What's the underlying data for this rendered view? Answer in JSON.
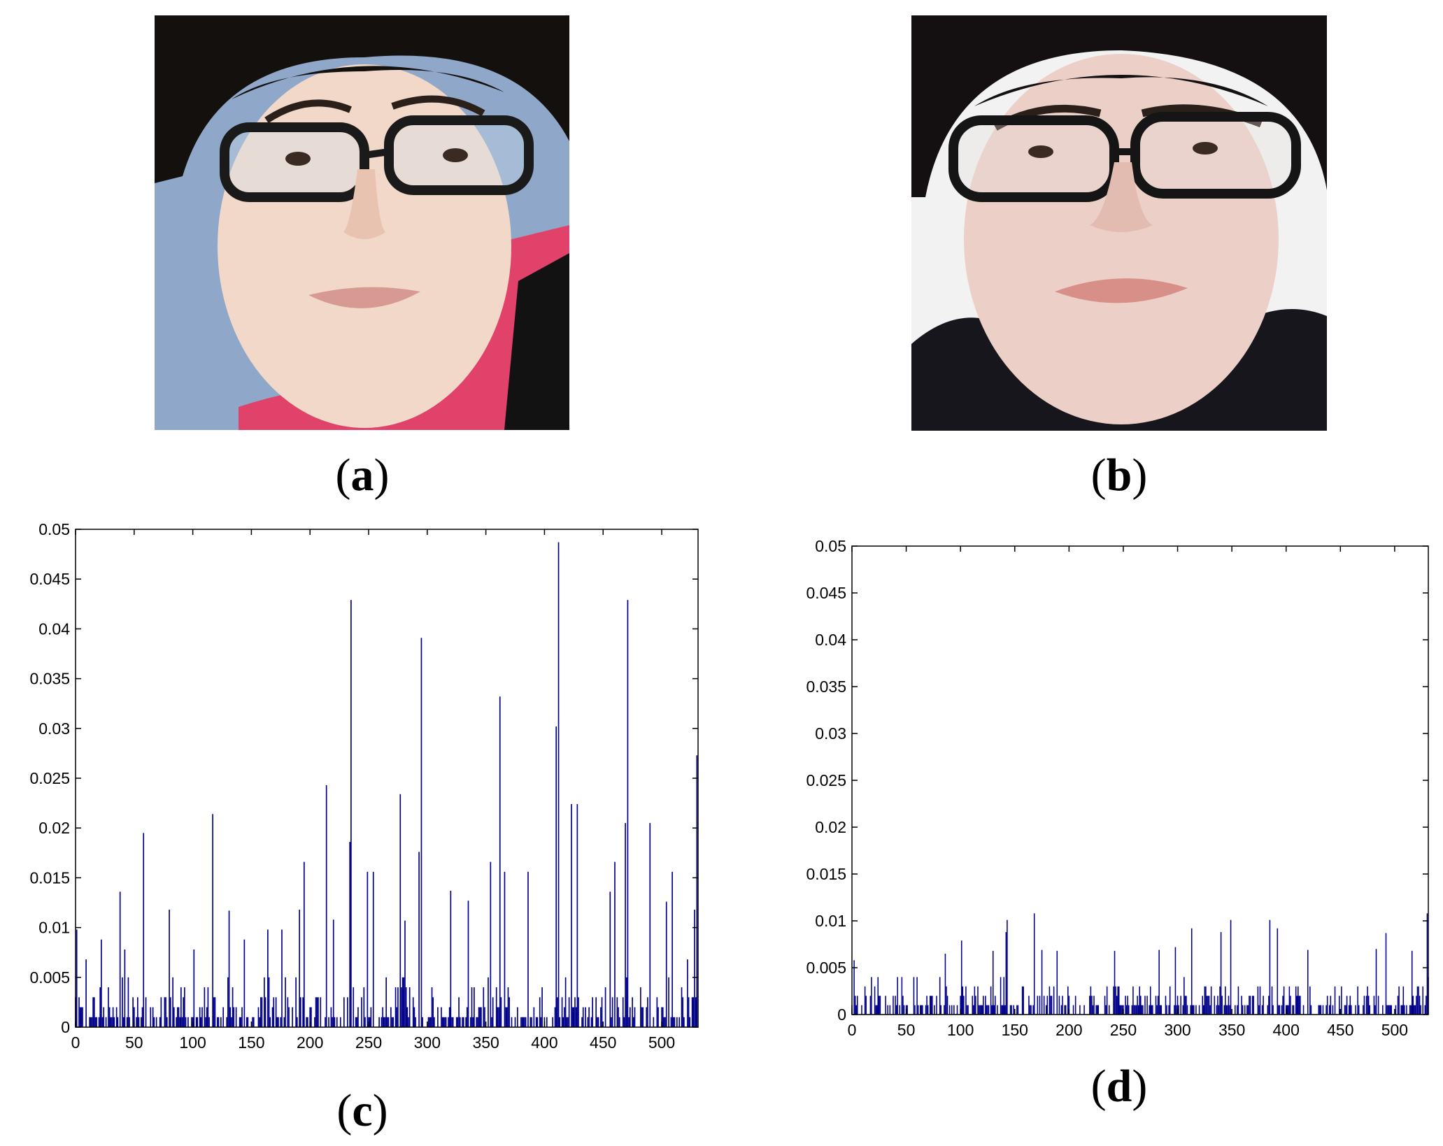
{
  "figure": {
    "captions": [
      {
        "open": "(",
        "letter": "a",
        "close": ")"
      },
      {
        "open": "(",
        "letter": "b",
        "close": ")"
      },
      {
        "open": "(",
        "letter": "c",
        "close": ")"
      },
      {
        "open": "(",
        "letter": "d",
        "close": ")"
      }
    ],
    "photos": [
      {
        "panel": "a",
        "content": "face-photo",
        "background_color": "#8fa7c9",
        "accent_color": "#e0426a"
      },
      {
        "panel": "b",
        "content": "face-photo",
        "background_color": "#f2f2f2",
        "accent_color": "#17161c"
      }
    ]
  },
  "chart_data": [
    {
      "type": "bar",
      "panel": "c",
      "title": "",
      "xlabel": "",
      "ylabel": "",
      "xlim": [
        0,
        531
      ],
      "ylim": [
        0,
        0.05
      ],
      "grid": false,
      "bar_color": "#00008b",
      "xticks": [
        "0",
        "50",
        "100",
        "150",
        "200",
        "250",
        "300",
        "350",
        "400",
        "450",
        "500"
      ],
      "yticks": [
        "0",
        "0.005",
        "0.01",
        "0.015",
        "0.02",
        "0.025",
        "0.03",
        "0.035",
        "0.04",
        "0.045",
        "0.05"
      ],
      "peaks": [
        {
          "x": 1,
          "y": 0.0098
        },
        {
          "x": 9,
          "y": 0.0068
        },
        {
          "x": 22,
          "y": 0.0088
        },
        {
          "x": 38,
          "y": 0.0136
        },
        {
          "x": 42,
          "y": 0.0078
        },
        {
          "x": 58,
          "y": 0.0195
        },
        {
          "x": 80,
          "y": 0.0118
        },
        {
          "x": 101,
          "y": 0.0078
        },
        {
          "x": 117,
          "y": 0.0214
        },
        {
          "x": 131,
          "y": 0.0117
        },
        {
          "x": 144,
          "y": 0.0088
        },
        {
          "x": 164,
          "y": 0.0098
        },
        {
          "x": 176,
          "y": 0.0098
        },
        {
          "x": 191,
          "y": 0.0118
        },
        {
          "x": 195,
          "y": 0.0166
        },
        {
          "x": 214,
          "y": 0.0243
        },
        {
          "x": 220,
          "y": 0.0108
        },
        {
          "x": 234,
          "y": 0.0186
        },
        {
          "x": 235,
          "y": 0.0429
        },
        {
          "x": 249,
          "y": 0.0156
        },
        {
          "x": 254,
          "y": 0.0156
        },
        {
          "x": 277,
          "y": 0.0234
        },
        {
          "x": 281,
          "y": 0.0107
        },
        {
          "x": 293,
          "y": 0.0176
        },
        {
          "x": 295,
          "y": 0.0391
        },
        {
          "x": 320,
          "y": 0.0137
        },
        {
          "x": 335,
          "y": 0.0127
        },
        {
          "x": 354,
          "y": 0.0166
        },
        {
          "x": 362,
          "y": 0.0332
        },
        {
          "x": 366,
          "y": 0.0156
        },
        {
          "x": 386,
          "y": 0.0156
        },
        {
          "x": 410,
          "y": 0.0302
        },
        {
          "x": 412,
          "y": 0.0487
        },
        {
          "x": 423,
          "y": 0.0224
        },
        {
          "x": 428,
          "y": 0.0224
        },
        {
          "x": 456,
          "y": 0.0136
        },
        {
          "x": 460,
          "y": 0.0166
        },
        {
          "x": 469,
          "y": 0.0205
        },
        {
          "x": 471,
          "y": 0.0429
        },
        {
          "x": 490,
          "y": 0.0205
        },
        {
          "x": 504,
          "y": 0.0126
        },
        {
          "x": 509,
          "y": 0.0156
        },
        {
          "x": 522,
          "y": 0.0068
        },
        {
          "x": 528,
          "y": 0.0118
        },
        {
          "x": 530,
          "y": 0.0273
        }
      ],
      "baseline_max": 0.006,
      "baseline_seed": 7
    },
    {
      "type": "bar",
      "panel": "d",
      "title": "",
      "xlabel": "",
      "ylabel": "",
      "xlim": [
        0,
        531
      ],
      "ylim": [
        0,
        0.05
      ],
      "grid": false,
      "bar_color": "#00008b",
      "xticks": [
        "0",
        "50",
        "100",
        "150",
        "200",
        "250",
        "300",
        "350",
        "400",
        "450",
        "500"
      ],
      "yticks": [
        "0",
        "0.005",
        "0.01",
        "0.015",
        "0.02",
        "0.025",
        "0.03",
        "0.035",
        "0.04",
        "0.045",
        "0.05"
      ],
      "peaks": [
        {
          "x": 2,
          "y": 0.0058
        },
        {
          "x": 46,
          "y": 0.004
        },
        {
          "x": 86,
          "y": 0.0065
        },
        {
          "x": 101,
          "y": 0.0079
        },
        {
          "x": 130,
          "y": 0.0068
        },
        {
          "x": 142,
          "y": 0.0088
        },
        {
          "x": 143,
          "y": 0.0101
        },
        {
          "x": 168,
          "y": 0.0108
        },
        {
          "x": 175,
          "y": 0.0069
        },
        {
          "x": 189,
          "y": 0.0068
        },
        {
          "x": 242,
          "y": 0.0068
        },
        {
          "x": 283,
          "y": 0.0069
        },
        {
          "x": 298,
          "y": 0.0072
        },
        {
          "x": 313,
          "y": 0.0092
        },
        {
          "x": 340,
          "y": 0.0088
        },
        {
          "x": 349,
          "y": 0.0101
        },
        {
          "x": 385,
          "y": 0.0101
        },
        {
          "x": 392,
          "y": 0.0092
        },
        {
          "x": 420,
          "y": 0.0069
        },
        {
          "x": 483,
          "y": 0.007
        },
        {
          "x": 492,
          "y": 0.0087
        },
        {
          "x": 516,
          "y": 0.0068
        },
        {
          "x": 530,
          "y": 0.0108
        }
      ],
      "baseline_max": 0.0045,
      "baseline_seed": 13
    }
  ]
}
